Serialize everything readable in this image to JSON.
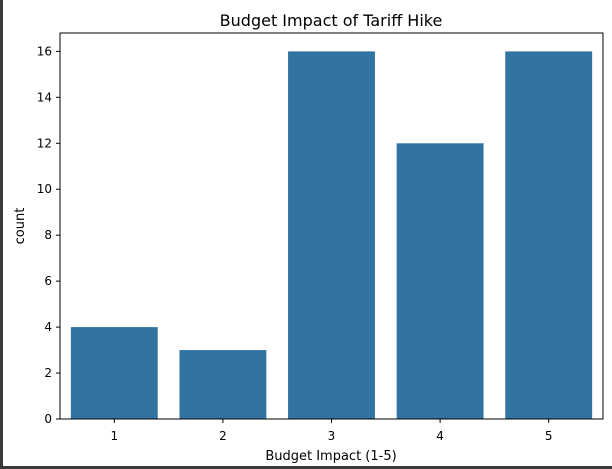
{
  "chart_data": {
    "type": "bar",
    "title": "Budget Impact of Tariff Hike",
    "xlabel": "Budget Impact (1-5)",
    "ylabel": "count",
    "categories": [
      "1",
      "2",
      "3",
      "4",
      "5"
    ],
    "values": [
      4,
      3,
      16,
      12,
      16
    ],
    "ylim": [
      0,
      16.8
    ],
    "yticks": [
      0,
      2,
      4,
      6,
      8,
      10,
      12,
      14,
      16
    ],
    "grid": false,
    "bar_color": "#3274a1"
  }
}
